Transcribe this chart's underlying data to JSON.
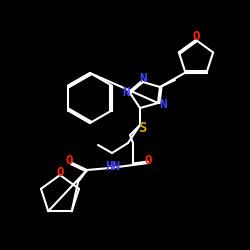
{
  "bg_color": "#000000",
  "bond_color": "#ffffff",
  "atom_colors": {
    "N": "#4444ff",
    "O": "#ff2200",
    "S": "#ccaa00",
    "H": "#ffffff",
    "C": "#ffffff"
  },
  "figsize": [
    2.5,
    2.5
  ],
  "dpi": 100
}
